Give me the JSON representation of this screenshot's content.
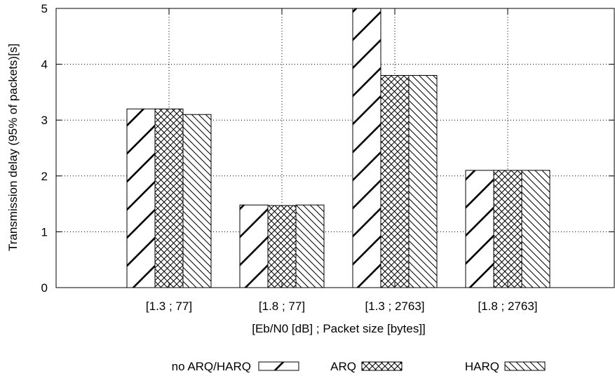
{
  "chart_data": {
    "type": "bar",
    "xlabel": "[Eb/N0 [dB] ; Packet size [bytes]]",
    "ylabel": "Transmission delay (95% of packets)[s]",
    "ylim": [
      0,
      5
    ],
    "yticks": [
      "0",
      "1",
      "2",
      "3",
      "4",
      "5"
    ],
    "grid": "dotted",
    "legend_position": "bottom",
    "categories": [
      "[1.3 ; 77]",
      "[1.8 ; 77]",
      "[1.3 ; 2763]",
      "[1.8 ; 2763]"
    ],
    "series": [
      {
        "name": "no ARQ/HARQ",
        "pattern": "forward-diagonal",
        "values": [
          3.2,
          1.48,
          5.0,
          2.1
        ]
      },
      {
        "name": "ARQ",
        "pattern": "crosshatch",
        "values": [
          3.2,
          1.47,
          3.8,
          2.1
        ]
      },
      {
        "name": "HARQ",
        "pattern": "back-diagonal",
        "values": [
          3.1,
          1.48,
          3.8,
          2.1
        ]
      }
    ]
  }
}
